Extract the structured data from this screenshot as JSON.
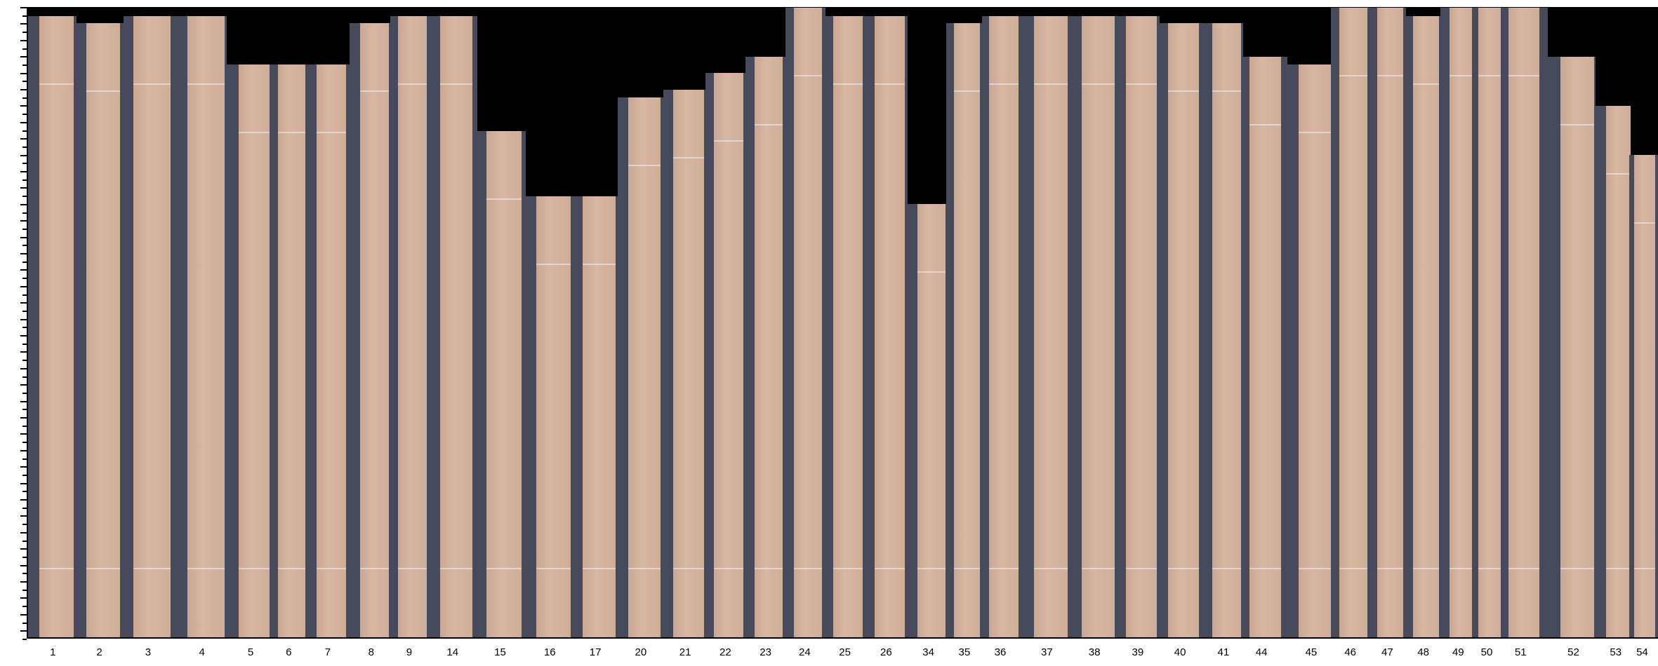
{
  "figure": {
    "x_tick_labels": [
      "1",
      "2",
      "3",
      "4",
      "5",
      "6",
      "7",
      "8",
      "9",
      "14",
      "15",
      "16",
      "17",
      "20",
      "21",
      "22",
      "23",
      "24",
      "25",
      "26",
      "34",
      "35",
      "36",
      "37",
      "38",
      "39",
      "40",
      "41",
      "44",
      "45",
      "46",
      "47",
      "48",
      "49",
      "50",
      "51",
      "52",
      "53",
      "54"
    ],
    "colors": {
      "background": "#000000",
      "scan_bed": "#474a5b",
      "veneer": "#d2b09b"
    }
  }
}
